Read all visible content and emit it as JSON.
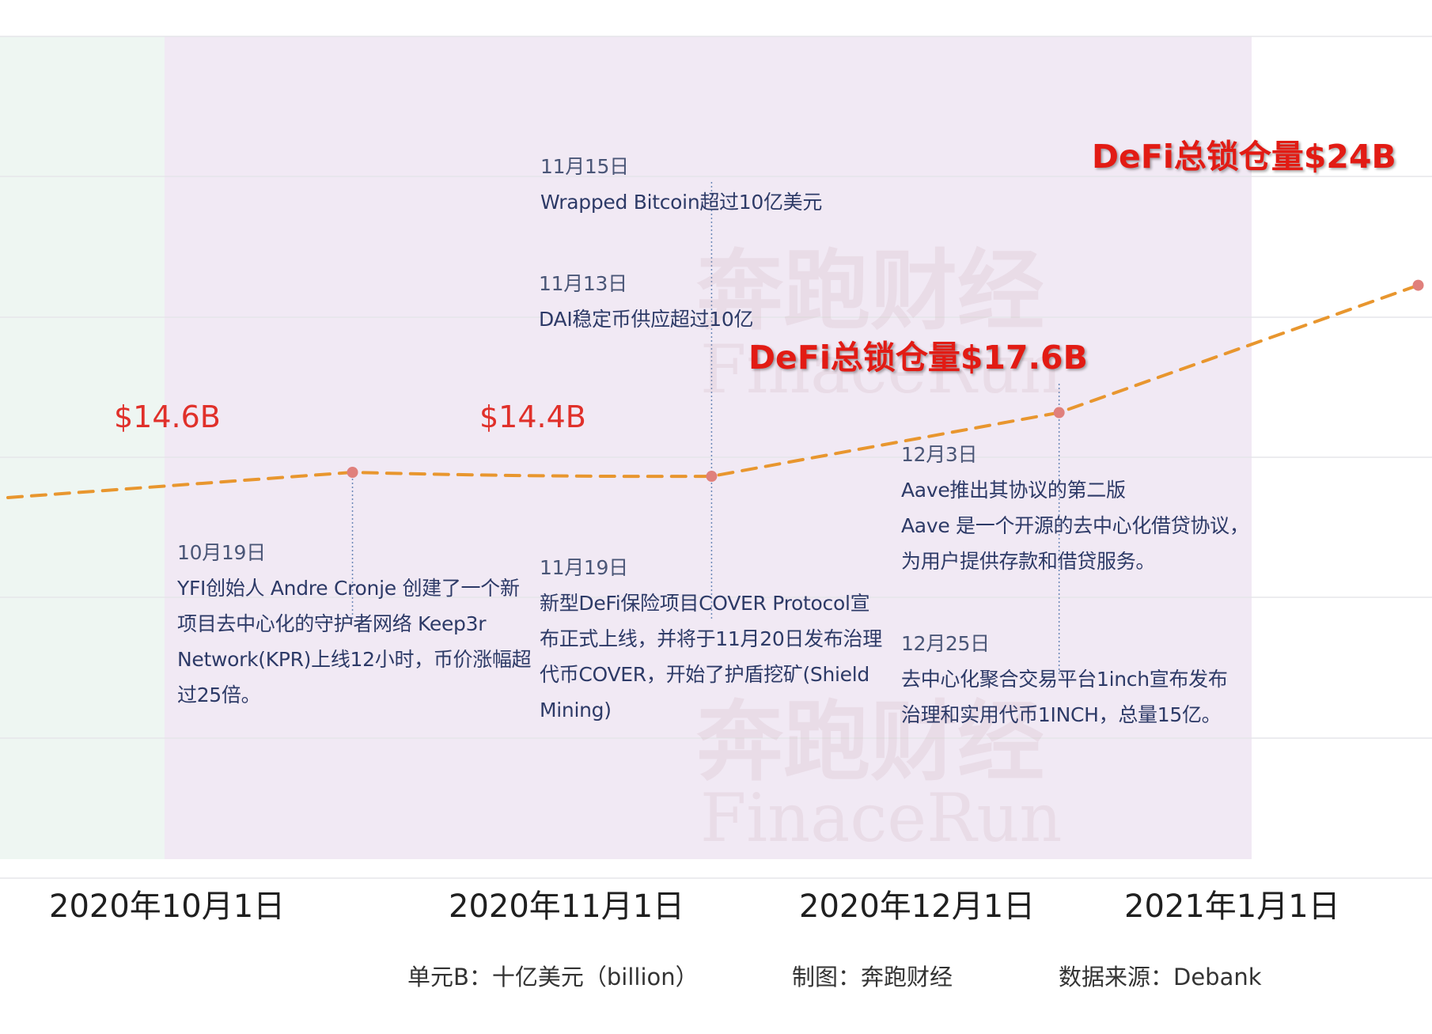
{
  "chart_data": {
    "type": "line",
    "x": [
      "2020-10-19",
      "2020-11-19",
      "2020-12-19",
      "2021-01-19"
    ],
    "series": [
      {
        "values": [
          14.6,
          14.4,
          17.6,
          24
        ]
      }
    ],
    "x_ticks": [
      "2020年10月1日",
      "2020年11月1日",
      "2020年12月1日",
      "2021年1月1日"
    ],
    "value_labels": [
      "$14.6B",
      "$14.4B",
      "DeFi总锁仓量$17.6B",
      "DeFi总锁仓量$24B"
    ],
    "grid": true,
    "line_style": "dashed",
    "colors": {
      "line": "#e8962e",
      "point": "#e0807c",
      "label": "#e0302a",
      "band_left": "#eef6f2",
      "band_main": "#f1e9f4"
    }
  },
  "annotations": [
    {
      "date": "11月15日",
      "text": [
        "Wrapped Bitcoin超过10亿美元"
      ]
    },
    {
      "date": "11月13日",
      "text": [
        "DAI稳定币供应超过10亿"
      ]
    },
    {
      "date": "10月19日",
      "text": [
        "YFI创始人 Andre Cronje 创建了一个新",
        "项目去中心化的守护者网络 Keep3r",
        "Network(KPR)上线12小时，币价涨幅超",
        "过25倍。"
      ]
    },
    {
      "date": "11月19日",
      "text": [
        "新型DeFi保险项目COVER Protocol宣",
        "布正式上线，并将于11月20日发布治理",
        "代币COVER，开始了护盾挖矿(Shield",
        "Mining)"
      ]
    },
    {
      "date": "12月3日",
      "text": [
        "Aave推出其协议的第二版",
        "Aave 是一个开源的去中心化借贷协议，",
        "为用户提供存款和借贷服务。"
      ]
    },
    {
      "date": "12月25日",
      "text": [
        "去中心化聚合交易平台1inch宣布发布",
        "治理和实用代币1INCH，总量15亿。"
      ]
    }
  ],
  "footer": {
    "unit": "单元B：十亿美元（billion）",
    "credit": "制图：奔跑财经",
    "source": "数据来源：Debank"
  },
  "watermark": {
    "cn": "奔跑财经",
    "en": "FinaceRun"
  }
}
